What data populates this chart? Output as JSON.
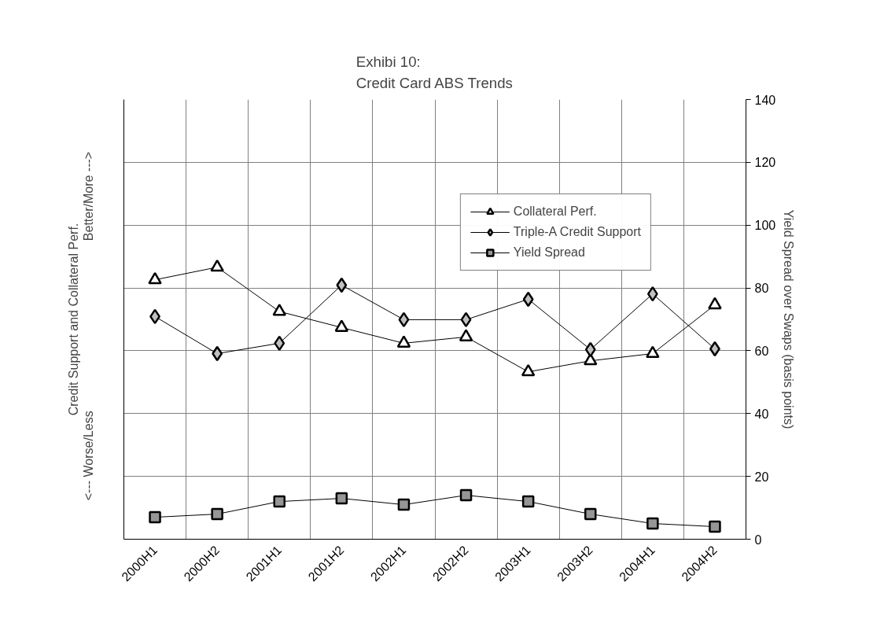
{
  "chart_data": {
    "type": "line",
    "title": "Exhibi 10:\nCredit Card ABS Trends",
    "ylabel": "Credit Support and Collateral Perf.",
    "y2label": "Yield Spread over Swaps (basis points)",
    "annotations": [
      "<--- Worse/Less",
      "Better/More --->"
    ],
    "categories": [
      "2000H1",
      "2000H2",
      "2001H1",
      "2001H2",
      "2002H1",
      "2002H2",
      "2003H1",
      "2003H2",
      "2004H1",
      "2004H2"
    ],
    "series": [
      {
        "name": "Collateral Perf.",
        "color": "#ffffff",
        "marker": "triangle",
        "values": [
          82.6,
          86.6,
          72.5,
          67.4,
          62.4,
          64.4,
          53.3,
          56.8,
          59.1,
          74.6
        ]
      },
      {
        "name": "Triple-A Credit Support",
        "color": "#c0c0c0",
        "marker": "diamond",
        "values": [
          70.9,
          59.1,
          62.4,
          80.9,
          69.9,
          69.9,
          76.4,
          60.4,
          78.1,
          60.6
        ]
      },
      {
        "name": "Yield Spread",
        "color": "#969696",
        "marker": "square",
        "values": [
          7,
          8,
          12,
          13,
          11,
          14,
          12,
          8,
          5,
          4
        ]
      }
    ],
    "ylim": [
      0,
      140
    ],
    "yticks": [
      0,
      20,
      40,
      60,
      80,
      100,
      120,
      140
    ],
    "grid": true,
    "legend": "top right",
    "line_style": "solid"
  }
}
